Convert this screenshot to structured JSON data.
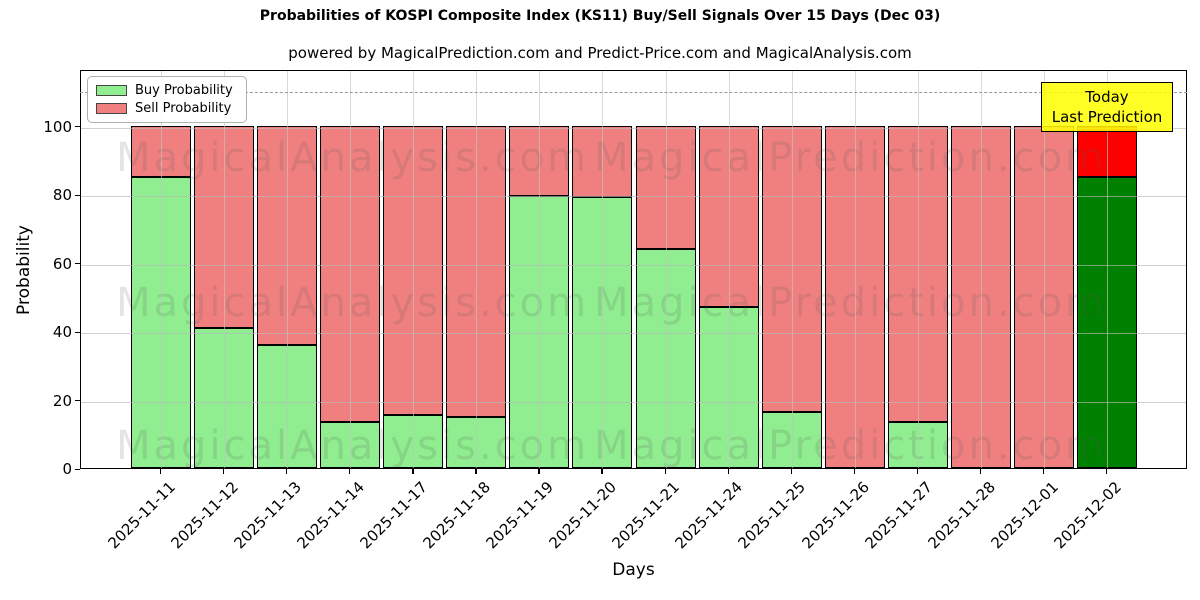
{
  "header": {
    "title": "Probabilities of KOSPI Composite Index (KS11) Buy/Sell Signals Over 15 Days (Dec 03)",
    "subtitle": "powered by MagicalPrediction.com and Predict-Price.com and MagicalAnalysis.com"
  },
  "legend": {
    "items": [
      {
        "label": "Buy Probability",
        "color": "#90ee90"
      },
      {
        "label": "Sell Probability",
        "color": "#f08080"
      }
    ]
  },
  "annotation": {
    "line1": "Today",
    "line2": "Last Prediction",
    "bg": "#ffff00"
  },
  "axes": {
    "ylabel": "Probability",
    "xlabel": "Days",
    "yticks": [
      0,
      20,
      40,
      60,
      80,
      100
    ],
    "ylim": [
      0,
      116
    ],
    "dashed_line_y": 110,
    "grid": true
  },
  "watermarks": {
    "left": "MagicalAnalysis.com",
    "right": "MagicalPrediction.com",
    "rows": 3
  },
  "chart_data": {
    "type": "bar",
    "stacked": true,
    "title": "Probabilities of KOSPI Composite Index (KS11) Buy/Sell Signals Over 15 Days (Dec 03)",
    "xlabel": "Days",
    "ylabel": "Probability",
    "ylim": [
      0,
      116
    ],
    "grid": true,
    "legend_position": "upper left",
    "categories": [
      "2025-11-11",
      "2025-11-12",
      "2025-11-13",
      "2025-11-14",
      "2025-11-17",
      "2025-11-18",
      "2025-11-19",
      "2025-11-20",
      "2025-11-21",
      "2025-11-24",
      "2025-11-25",
      "2025-11-26",
      "2025-11-27",
      "2025-11-28",
      "2025-12-01",
      "2025-12-02"
    ],
    "series": [
      {
        "name": "Buy Probability",
        "color": "#90ee90",
        "values": [
          85,
          41,
          36,
          13.5,
          15.5,
          15,
          79.5,
          79,
          64,
          47,
          16.5,
          0,
          13.5,
          0,
          0,
          85
        ]
      },
      {
        "name": "Sell Probability",
        "color": "#f08080",
        "values": [
          15,
          59,
          64,
          86.5,
          84.5,
          85,
          20.5,
          21,
          36,
          53,
          83.5,
          100,
          86.5,
          100,
          100,
          15
        ]
      }
    ],
    "today_bar": {
      "index": 15,
      "buy_color": "#008000",
      "sell_color": "#ff0000"
    }
  }
}
